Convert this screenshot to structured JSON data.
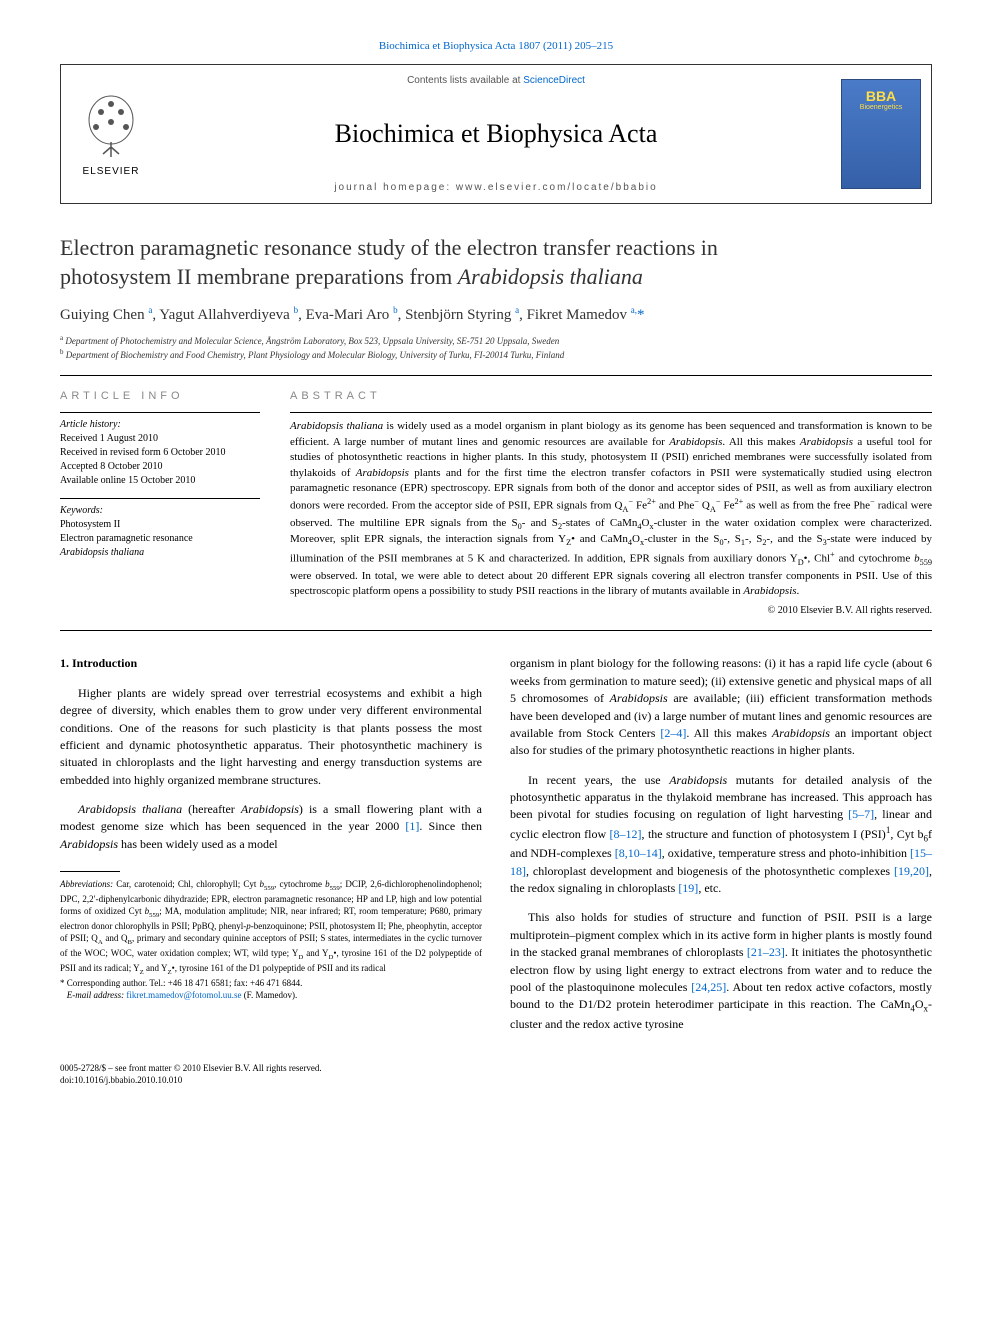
{
  "top_link": "Biochimica et Biophysica Acta 1807 (2011) 205–215",
  "header": {
    "contents_prefix": "Contents lists available at ",
    "contents_link": "ScienceDirect",
    "journal": "Biochimica et Biophysica Acta",
    "homepage": "journal homepage: www.elsevier.com/locate/bbabio",
    "elsevier": "ELSEVIER",
    "bba_label": "BBA",
    "bba_sub": "Bioenergetics"
  },
  "title_line1": "Electron paramagnetic resonance study of the electron transfer reactions in",
  "title_line2_a": "photosystem II membrane preparations from ",
  "title_line2_b": "Arabidopsis thaliana",
  "authors_html": "Guiying Chen <sup>a</sup>, Yagut Allahverdiyeva <sup>b</sup>, Eva-Mari Aro <sup>b</sup>, Stenbjörn Styring <sup>a</sup>, Fikret Mamedov <sup>a,</sup><span class='star'>*</span>",
  "affiliations": {
    "a": "Department of Photochemistry and Molecular Science, Ångström Laboratory, Box 523, Uppsala University, SE-751 20 Uppsala, Sweden",
    "b": "Department of Biochemistry and Food Chemistry, Plant Physiology and Molecular Biology, University of Turku, FI-20014 Turku, Finland"
  },
  "info": {
    "header": "article info",
    "history_label": "Article history:",
    "history": "Received 1 August 2010\nReceived in revised form 6 October 2010\nAccepted 8 October 2010\nAvailable online 15 October 2010",
    "keywords_label": "Keywords:",
    "keywords": "Photosystem II\nElectron paramagnetic resonance\nArabidopsis thaliana"
  },
  "abstract": {
    "header": "abstract",
    "text": "Arabidopsis thaliana is widely used as a model organism in plant biology as its genome has been sequenced and transformation is known to be efficient. A large number of mutant lines and genomic resources are available for Arabidopsis. All this makes Arabidopsis a useful tool for studies of photosynthetic reactions in higher plants. In this study, photosystem II (PSII) enriched membranes were successfully isolated from thylakoids of Arabidopsis plants and for the first time the electron transfer cofactors in PSII were systematically studied using electron paramagnetic resonance (EPR) spectroscopy. EPR signals from both of the donor and acceptor sides of PSII, as well as from auxiliary electron donors were recorded. From the acceptor side of PSII, EPR signals from QA− Fe2+ and Phe− QA− Fe2+ as well as from the free Phe− radical were observed. The multiline EPR signals from the S0- and S2-states of CaMn4Ox-cluster in the water oxidation complex were characterized. Moreover, split EPR signals, the interaction signals from YZ• and CaMn4Ox-cluster in the S0-, S1-, S2-, and the S3-state were induced by illumination of the PSII membranes at 5 K and characterized. In addition, EPR signals from auxiliary donors YD•, Chl+ and cytochrome b559 were observed. In total, we were able to detect about 20 different EPR signals covering all electron transfer components in PSII. Use of this spectroscopic platform opens a possibility to study PSII reactions in the library of mutants available in Arabidopsis.",
    "copyright": "© 2010 Elsevier B.V. All rights reserved."
  },
  "body": {
    "section1_heading": "1. Introduction",
    "left_p1": "Higher plants are widely spread over terrestrial ecosystems and exhibit a high degree of diversity, which enables them to grow under very different environmental conditions. One of the reasons for such plasticity is that plants possess the most efficient and dynamic photosynthetic apparatus. Their photosynthetic machinery is situated in chloroplasts and the light harvesting and energy transduction systems are embedded into highly organized membrane structures.",
    "left_p2_a": "Arabidopsis thaliana",
    "left_p2_b": " (hereafter ",
    "left_p2_c": "Arabidopsis",
    "left_p2_d": ") is a small flowering plant with a modest genome size which has been sequenced in the year 2000 ",
    "left_p2_ref": "[1]",
    "left_p2_e": ". Since then ",
    "left_p2_f": "Arabidopsis",
    "left_p2_g": " has been widely used as a model",
    "right_p1_a": "organism in plant biology for the following reasons: (i) it has a rapid life cycle (about 6 weeks from germination to mature seed); (ii) extensive genetic and physical maps of all 5 chromosomes of ",
    "right_p1_b": "Arabidopsis",
    "right_p1_c": " are available; (iii) efficient transformation methods have been developed and (iv) a large number of mutant lines and genomic resources are available from Stock Centers ",
    "right_p1_ref": "[2–4]",
    "right_p1_d": ". All this makes ",
    "right_p1_e": "Arabidopsis",
    "right_p1_f": " an important object also for studies of the primary photosynthetic reactions in higher plants.",
    "right_p2_a": "In recent years, the use ",
    "right_p2_b": "Arabidopsis",
    "right_p2_c": " mutants for detailed analysis of the photosynthetic apparatus in the thylakoid membrane has increased. This approach has been pivotal for studies focusing on regulation of light harvesting ",
    "right_p2_ref1": "[5–7]",
    "right_p2_d": ", linear and cyclic electron flow ",
    "right_p2_ref2": "[8–12]",
    "right_p2_e": ", the structure and function of photosystem I (PSI)",
    "right_p2_sup": "1",
    "right_p2_f": ", Cyt b",
    "right_p2_sub": "6",
    "right_p2_g": "f and NDH-complexes ",
    "right_p2_ref3": "[8,10–14]",
    "right_p2_h": ", oxidative, temperature stress and photo-inhibition ",
    "right_p2_ref4": "[15–18]",
    "right_p2_i": ", chloroplast development and biogenesis of the photosynthetic complexes ",
    "right_p2_ref5": "[19,20]",
    "right_p2_j": ", the redox signaling in chloroplasts ",
    "right_p2_ref6": "[19]",
    "right_p2_k": ", etc.",
    "right_p3_a": "This also holds for studies of structure and function of PSII. PSII is a large multiprotein–pigment complex which in its active form in higher plants is mostly found in the stacked granal membranes of chloroplasts ",
    "right_p3_ref1": "[21–23]",
    "right_p3_b": ". It initiates the photosynthetic electron flow by using light energy to extract electrons from water and to reduce the pool of the plastoquinone molecules ",
    "right_p3_ref2": "[24,25]",
    "right_p3_c": ". About ten redox active cofactors, mostly bound to the D1/D2 protein heterodimer participate in this reaction. The CaMn",
    "right_p3_sub": "4",
    "right_p3_d": "O",
    "right_p3_sub2": "x",
    "right_p3_e": "-cluster and the redox active tyrosine"
  },
  "footnotes": {
    "abbrev_label": "Abbreviations:",
    "abbrev_text": " Car, carotenoid; Chl, chlorophyll; Cyt b559, cytochrome b559; DCIP, 2,6-dichlorophenolindophenol; DPC, 2,2′-diphenylcarbonic dihydrazide; EPR, electron paramagnetic resonance; HP and LP, high and low potential forms of oxidized Cyt b559; MA, modulation amplitude; NIR, near infrared; RT, room temperature; P680, primary electron donor chlorophylls in PSII; PpBQ, phenyl-p-benzoquinone; PSII, photosystem II; Phe, pheophytin, acceptor of PSII; QA and QB, primary and secondary quinine acceptors of PSII; S states, intermediates in the cyclic turnover of the WOC; WOC, water oxidation complex; WT, wild type; YD and YD•, tyrosine 161 of the D2 polypeptide of PSII and its radical; YZ and YZ•, tyrosine 161 of the D1 polypeptide of PSII and its radical",
    "corr_label": "* Corresponding author. ",
    "corr_text": "Tel.: +46 18 471 6581; fax: +46 471 6844.",
    "email_label": "E-mail address:",
    "email": "fikret.mamedov@fotomol.uu.se",
    "email_name": "(F. Mamedov)."
  },
  "footer": {
    "line1": "0005-2728/$ – see front matter © 2010 Elsevier B.V. All rights reserved.",
    "line2": "doi:10.1016/j.bbabio.2010.10.010"
  },
  "colors": {
    "link": "#0066cc",
    "bba_bg_top": "#4a7bc8",
    "bba_bg_bottom": "#3560a8",
    "bba_text": "#ffdd44"
  }
}
